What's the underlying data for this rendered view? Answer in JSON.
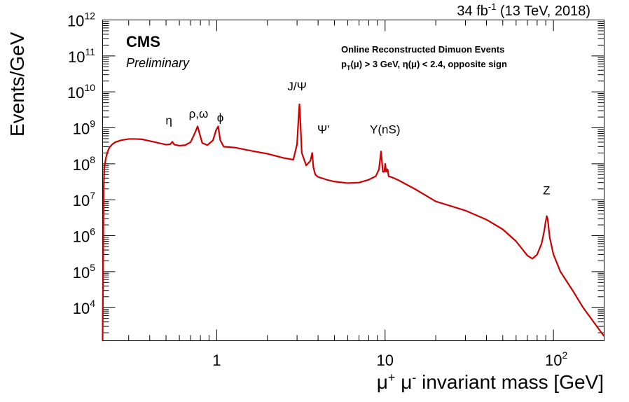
{
  "header": {
    "lumi_main": "34 fb",
    "lumi_sup": "-1",
    "lumi_rest": " (13 TeV, 2018)"
  },
  "legend": {
    "experiment": "CMS",
    "status": "Preliminary",
    "line1": "Online Reconstructed Dimuon Events",
    "line2_a": "p",
    "line2_sub": "T",
    "line2_b": "(μ) > 3 GeV,  η(μ) < 2.4, opposite sign"
  },
  "axes": {
    "xlabel_a": "μ",
    "xlabel_sup1": "+",
    "xlabel_b": " μ",
    "xlabel_sup2": "-",
    "xlabel_c": " invariant mass [GeV]",
    "ylabel": "Events/GeV"
  },
  "chart_data": {
    "type": "line",
    "title": "",
    "xlabel": "μ+ μ- invariant mass [GeV]",
    "ylabel": "Events/GeV",
    "x_scale": "log",
    "y_scale": "log",
    "xlim": [
      0.21,
      200
    ],
    "ylim": [
      1200,
      1000000000000.0
    ],
    "grid": false,
    "x_ticks": [
      {
        "value": 1,
        "base": "1",
        "exp": ""
      },
      {
        "value": 10,
        "base": "10",
        "exp": ""
      },
      {
        "value": 100,
        "base": "10",
        "exp": "2"
      }
    ],
    "y_ticks": [
      {
        "value": 10000.0,
        "base": "10",
        "exp": "4"
      },
      {
        "value": 100000.0,
        "base": "10",
        "exp": "5"
      },
      {
        "value": 1000000.0,
        "base": "10",
        "exp": "6"
      },
      {
        "value": 10000000.0,
        "base": "10",
        "exp": "7"
      },
      {
        "value": 100000000.0,
        "base": "10",
        "exp": "8"
      },
      {
        "value": 1000000000.0,
        "base": "10",
        "exp": "9"
      },
      {
        "value": 10000000000.0,
        "base": "10",
        "exp": "10"
      },
      {
        "value": 100000000000.0,
        "base": "10",
        "exp": "11"
      },
      {
        "value": 1000000000000.0,
        "base": "10",
        "exp": "12"
      }
    ],
    "annotations": [
      {
        "text": "η",
        "x": 0.52,
        "y": 1250000000.0
      },
      {
        "text": "ρ,ω",
        "x": 0.78,
        "y": 1900000000.0
      },
      {
        "text": "ϕ",
        "x": 1.05,
        "y": 1500000000.0
      },
      {
        "text": "J/Ψ",
        "x": 3.0,
        "y": 11000000000.0
      },
      {
        "text": "Ψ'",
        "x": 4.3,
        "y": 700000000.0
      },
      {
        "text": "Υ(nS)",
        "x": 10.0,
        "y": 700000000.0
      },
      {
        "text": "Z",
        "x": 91,
        "y": 14000000.0
      }
    ],
    "series": [
      {
        "color": "#cc0000",
        "x": [
          0.21,
          0.212,
          0.213,
          0.215,
          0.22,
          0.225,
          0.23,
          0.24,
          0.25,
          0.27,
          0.3,
          0.33,
          0.36,
          0.4,
          0.45,
          0.5,
          0.53,
          0.545,
          0.56,
          0.6,
          0.65,
          0.7,
          0.74,
          0.77,
          0.79,
          0.82,
          0.88,
          0.95,
          0.99,
          1.02,
          1.05,
          1.1,
          1.3,
          1.6,
          2.0,
          2.5,
          2.85,
          3.0,
          3.06,
          3.1,
          3.14,
          3.2,
          3.4,
          3.6,
          3.69,
          3.75,
          3.85,
          4.0,
          4.5,
          5.0,
          6.0,
          7.0,
          8.0,
          8.8,
          9.2,
          9.46,
          9.7,
          9.9,
          10.02,
          10.15,
          10.35,
          10.5,
          11.0,
          12.0,
          15.0,
          20.0,
          30.0,
          40.0,
          50.0,
          60.0,
          70.0,
          75.0,
          80.0,
          85.0,
          88.0,
          90.0,
          91.2,
          92.5,
          95.0,
          100.0,
          110.0,
          130.0,
          150.0,
          170.0,
          190.0,
          200.0
        ],
        "y": [
          1200,
          1000000.0,
          20000000.0,
          80000000.0,
          150000000.0,
          220000000.0,
          280000000.0,
          350000000.0,
          400000000.0,
          450000000.0,
          490000000.0,
          490000000.0,
          480000000.0,
          430000000.0,
          380000000.0,
          340000000.0,
          350000000.0,
          410000000.0,
          340000000.0,
          320000000.0,
          330000000.0,
          400000000.0,
          700000000.0,
          1100000000.0,
          700000000.0,
          380000000.0,
          330000000.0,
          450000000.0,
          850000000.0,
          1100000000.0,
          450000000.0,
          300000000.0,
          280000000.0,
          230000000.0,
          190000000.0,
          145000000.0,
          130000000.0,
          350000000.0,
          1800000000.0,
          4500000000.0,
          1500000000.0,
          200000000.0,
          90000000.0,
          120000000.0,
          200000000.0,
          80000000.0,
          50000000.0,
          43000000.0,
          36000000.0,
          32000000.0,
          29000000.0,
          30000000.0,
          36000000.0,
          45000000.0,
          70000000.0,
          220000000.0,
          60000000.0,
          60000000.0,
          100000000.0,
          60000000.0,
          70000000.0,
          45000000.0,
          42000000.0,
          35000000.0,
          20000000.0,
          9000000.0,
          5000000.0,
          2800000.0,
          1500000.0,
          700000.0,
          280000.0,
          230000.0,
          300000.0,
          600000.0,
          1300000.0,
          2500000.0,
          3500000.0,
          2800000.0,
          900000.0,
          300000.0,
          100000.0,
          30000.0,
          10000.0,
          4500.0,
          2200.0,
          1600.0
        ]
      }
    ]
  }
}
